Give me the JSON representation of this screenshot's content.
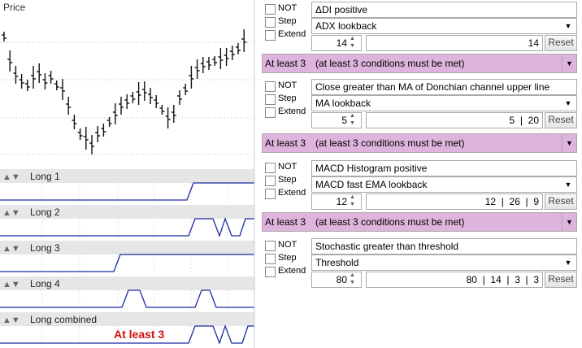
{
  "left": {
    "price_label": "Price",
    "signals": [
      "Long 1",
      "Long 2",
      "Long 3",
      "Long 4",
      "Long combined"
    ],
    "combined_note": "At least 3"
  },
  "blocks": [
    {
      "options": [
        "NOT",
        "Step",
        "Extend"
      ],
      "condition": "ΔDI positive",
      "parameter": "ADX lookback",
      "spinner": "14",
      "values": "14",
      "reset": "Reset"
    },
    {
      "options": [
        "NOT",
        "Step",
        "Extend"
      ],
      "condition": "Close greater than MA of Donchian channel upper line",
      "parameter": "MA lookback",
      "spinner": "5",
      "values": "5  |  20",
      "reset": "Reset"
    },
    {
      "options": [
        "NOT",
        "Step",
        "Extend"
      ],
      "condition": "MACD Histogram positive",
      "parameter": "MACD fast EMA lookback",
      "spinner": "12",
      "values": "12  |  26  |  9",
      "reset": "Reset"
    },
    {
      "options": [
        "NOT",
        "Step",
        "Extend"
      ],
      "condition": "Stochastic greater than threshold",
      "parameter": "Threshold",
      "spinner": "80",
      "values": "80  |  14  |  3  |  3",
      "reset": "Reset"
    }
  ],
  "combiners": [
    {
      "mode": "At least 3",
      "description": "(at least 3 conditions must be met)"
    },
    {
      "mode": "At least 3",
      "description": "(at least 3 conditions must be met)"
    },
    {
      "mode": "At least 3",
      "description": "(at least 3 conditions must be met)"
    }
  ]
}
